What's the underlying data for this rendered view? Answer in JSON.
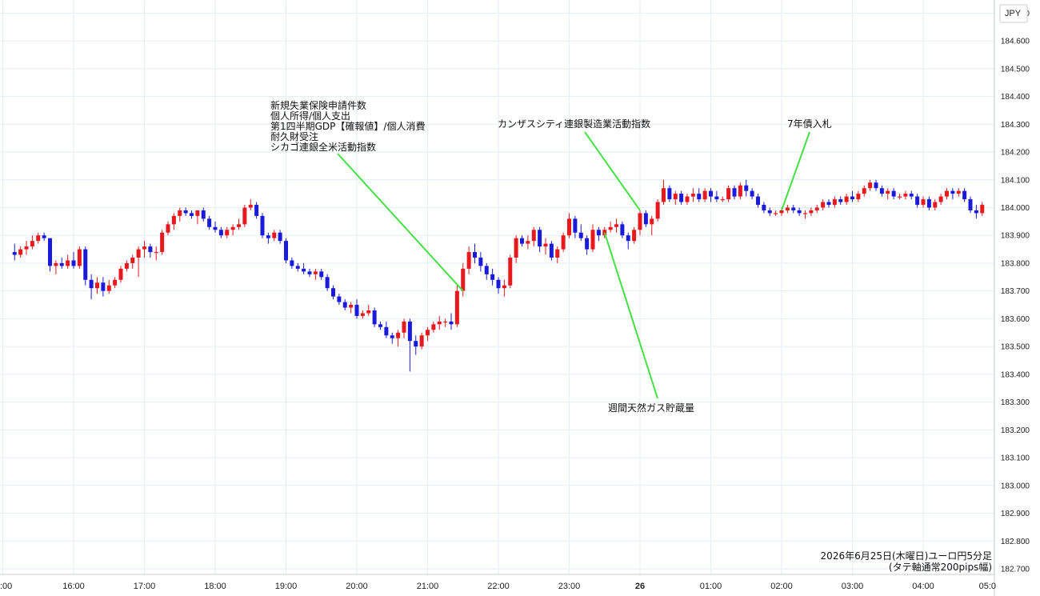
{
  "chart_data": {
    "type": "candlestick",
    "currency_label": "JPY",
    "caption_line1": "2026年6月25日(木曜日)ユーロ円5分足",
    "caption_line2": "(タテ軸通常200pips幅)",
    "ylim": [
      182.7,
      184.75
    ],
    "y_ticks": [
      "184.700",
      "184.600",
      "184.500",
      "184.400",
      "184.300",
      "184.200",
      "184.100",
      "184.000",
      "183.900",
      "183.800",
      "183.700",
      "183.600",
      "183.500",
      "183.400",
      "183.300",
      "183.200",
      "183.100",
      "183.000",
      "182.900",
      "182.800",
      "182.700"
    ],
    "x_ticks": [
      ":00",
      "16:00",
      "17:00",
      "18:00",
      "19:00",
      "20:00",
      "21:00",
      "22:00",
      "23:00",
      "26",
      "01:00",
      "02:00",
      "03:00",
      "04:00",
      "05:0"
    ],
    "x_start": "15:10",
    "interval_minutes": 5,
    "up_color": "#e8191e",
    "down_color": "#1a1adb",
    "annotation_color": "#44e044",
    "annotations": [
      {
        "lines": [
          "新規失業保険申請件数",
          "個人所得/個人支出",
          "第1四半期GDP【確報値】/個人消費",
          "耐久財受注",
          "シカゴ連銀全米活動指数"
        ],
        "time": "21:30",
        "price": 183.7
      },
      {
        "lines": [
          "カンザスシティ連銀製造業活動指数"
        ],
        "time": "00:00",
        "price": 183.99
      },
      {
        "lines": [
          "週間天然ガス貯蔵量"
        ],
        "time": "23:30",
        "price": 183.91
      },
      {
        "lines": [
          "7年債入札"
        ],
        "time": "02:00",
        "price": 183.99
      }
    ],
    "candles": [
      [
        183.84,
        183.87,
        183.81,
        183.83
      ],
      [
        183.83,
        183.86,
        183.82,
        183.85
      ],
      [
        183.85,
        183.88,
        183.83,
        183.86
      ],
      [
        183.86,
        183.9,
        183.85,
        183.88
      ],
      [
        183.88,
        183.91,
        183.87,
        183.9
      ],
      [
        183.9,
        183.91,
        183.88,
        183.89
      ],
      [
        183.89,
        183.89,
        183.77,
        183.79
      ],
      [
        183.79,
        183.81,
        183.76,
        183.8
      ],
      [
        183.8,
        183.82,
        183.78,
        183.79
      ],
      [
        183.79,
        183.83,
        183.78,
        183.81
      ],
      [
        183.81,
        183.84,
        183.78,
        183.79
      ],
      [
        183.79,
        183.86,
        183.78,
        183.85
      ],
      [
        183.85,
        183.86,
        183.72,
        183.74
      ],
      [
        183.74,
        183.76,
        183.67,
        183.71
      ],
      [
        183.71,
        183.75,
        183.69,
        183.73
      ],
      [
        183.73,
        183.75,
        183.68,
        183.7
      ],
      [
        183.7,
        183.74,
        183.69,
        183.72
      ],
      [
        183.72,
        183.75,
        183.71,
        183.74
      ],
      [
        183.74,
        183.79,
        183.73,
        183.78
      ],
      [
        183.78,
        183.81,
        183.77,
        183.8
      ],
      [
        183.8,
        183.83,
        183.78,
        183.82
      ],
      [
        183.82,
        183.86,
        183.75,
        183.85
      ],
      [
        183.85,
        183.88,
        183.82,
        183.86
      ],
      [
        183.86,
        183.87,
        183.82,
        183.84
      ],
      [
        183.84,
        183.86,
        183.81,
        183.84
      ],
      [
        183.84,
        183.92,
        183.83,
        183.91
      ],
      [
        183.91,
        183.95,
        183.9,
        183.94
      ],
      [
        183.94,
        183.98,
        183.92,
        183.97
      ],
      [
        183.97,
        184.0,
        183.95,
        183.99
      ],
      [
        183.99,
        184.0,
        183.97,
        183.98
      ],
      [
        183.98,
        183.99,
        183.96,
        183.97
      ],
      [
        183.97,
        183.99,
        183.94,
        183.99
      ],
      [
        183.99,
        184.0,
        183.95,
        183.96
      ],
      [
        183.96,
        183.97,
        183.92,
        183.93
      ],
      [
        183.93,
        183.95,
        183.91,
        183.92
      ],
      [
        183.92,
        183.93,
        183.89,
        183.9
      ],
      [
        183.9,
        183.93,
        183.89,
        183.92
      ],
      [
        183.92,
        183.94,
        183.9,
        183.93
      ],
      [
        183.93,
        183.96,
        183.92,
        183.94
      ],
      [
        183.94,
        184.01,
        183.93,
        184.0
      ],
      [
        184.0,
        184.03,
        183.99,
        184.01
      ],
      [
        184.01,
        184.02,
        183.96,
        183.97
      ],
      [
        183.97,
        183.98,
        183.89,
        183.9
      ],
      [
        183.9,
        183.91,
        183.87,
        183.89
      ],
      [
        183.89,
        183.92,
        183.88,
        183.91
      ],
      [
        183.91,
        183.92,
        183.87,
        183.88
      ],
      [
        183.88,
        183.89,
        183.8,
        183.81
      ],
      [
        183.81,
        183.82,
        183.78,
        183.79
      ],
      [
        183.79,
        183.8,
        183.77,
        183.78
      ],
      [
        183.78,
        183.8,
        183.76,
        183.77
      ],
      [
        183.77,
        183.78,
        183.75,
        183.76
      ],
      [
        183.76,
        183.78,
        183.74,
        183.77
      ],
      [
        183.77,
        183.78,
        183.74,
        183.75
      ],
      [
        183.75,
        183.76,
        183.7,
        183.71
      ],
      [
        183.71,
        183.72,
        183.67,
        183.68
      ],
      [
        183.68,
        183.69,
        183.65,
        183.66
      ],
      [
        183.66,
        183.67,
        183.63,
        183.64
      ],
      [
        183.64,
        183.66,
        183.62,
        183.65
      ],
      [
        183.65,
        183.67,
        183.6,
        183.61
      ],
      [
        183.61,
        183.63,
        183.6,
        183.62
      ],
      [
        183.62,
        183.65,
        183.61,
        183.63
      ],
      [
        183.63,
        183.64,
        183.57,
        183.58
      ],
      [
        183.58,
        183.59,
        183.56,
        183.57
      ],
      [
        183.57,
        183.59,
        183.53,
        183.54
      ],
      [
        183.54,
        183.55,
        183.51,
        183.53
      ],
      [
        183.53,
        183.56,
        183.5,
        183.55
      ],
      [
        183.55,
        183.6,
        183.53,
        183.59
      ],
      [
        183.59,
        183.6,
        183.41,
        183.52
      ],
      [
        183.52,
        183.54,
        183.47,
        183.5
      ],
      [
        183.5,
        183.55,
        183.49,
        183.54
      ],
      [
        183.54,
        183.57,
        183.52,
        183.56
      ],
      [
        183.56,
        183.59,
        183.55,
        183.58
      ],
      [
        183.58,
        183.61,
        183.56,
        183.59
      ],
      [
        183.59,
        183.6,
        183.57,
        183.59
      ],
      [
        183.59,
        183.62,
        183.56,
        183.58
      ],
      [
        183.58,
        183.72,
        183.57,
        183.7
      ],
      [
        183.7,
        183.8,
        183.68,
        183.78
      ],
      [
        183.78,
        183.86,
        183.76,
        183.84
      ],
      [
        183.84,
        183.87,
        183.8,
        183.82
      ],
      [
        183.82,
        183.84,
        183.77,
        183.79
      ],
      [
        183.79,
        183.8,
        183.74,
        183.76
      ],
      [
        183.76,
        183.78,
        183.72,
        183.74
      ],
      [
        183.74,
        183.75,
        183.69,
        183.71
      ],
      [
        183.71,
        183.74,
        183.68,
        183.72
      ],
      [
        183.72,
        183.83,
        183.71,
        183.82
      ],
      [
        183.82,
        183.9,
        183.8,
        183.89
      ],
      [
        183.89,
        183.9,
        183.86,
        183.87
      ],
      [
        183.87,
        183.9,
        183.85,
        183.88
      ],
      [
        183.88,
        183.93,
        183.86,
        183.92
      ],
      [
        183.92,
        183.93,
        183.84,
        183.86
      ],
      [
        183.86,
        183.89,
        183.83,
        183.87
      ],
      [
        183.87,
        183.88,
        183.81,
        183.82
      ],
      [
        183.82,
        183.86,
        183.8,
        183.85
      ],
      [
        183.85,
        183.91,
        183.84,
        183.9
      ],
      [
        183.9,
        183.98,
        183.89,
        183.96
      ],
      [
        183.96,
        183.97,
        183.89,
        183.91
      ],
      [
        183.91,
        183.94,
        183.88,
        183.89
      ],
      [
        183.89,
        183.9,
        183.83,
        183.85
      ],
      [
        183.85,
        183.94,
        183.84,
        183.92
      ],
      [
        183.92,
        183.93,
        183.88,
        183.9
      ],
      [
        183.9,
        183.93,
        183.89,
        183.92
      ],
      [
        183.92,
        183.95,
        183.91,
        183.93
      ],
      [
        183.93,
        183.96,
        183.91,
        183.94
      ],
      [
        183.94,
        183.95,
        183.89,
        183.9
      ],
      [
        183.9,
        183.91,
        183.85,
        183.88
      ],
      [
        183.88,
        183.93,
        183.87,
        183.92
      ],
      [
        183.92,
        183.99,
        183.9,
        183.98
      ],
      [
        183.98,
        183.99,
        183.93,
        183.94
      ],
      [
        183.94,
        183.97,
        183.9,
        183.96
      ],
      [
        183.96,
        184.03,
        183.95,
        184.02
      ],
      [
        184.02,
        184.1,
        184.01,
        184.07
      ],
      [
        184.07,
        184.08,
        184.02,
        184.03
      ],
      [
        184.03,
        184.06,
        184.01,
        184.05
      ],
      [
        184.05,
        184.06,
        184.01,
        184.02
      ],
      [
        184.02,
        184.05,
        184.01,
        184.04
      ],
      [
        184.04,
        184.07,
        184.02,
        184.05
      ],
      [
        184.05,
        184.07,
        184.02,
        184.03
      ],
      [
        184.03,
        184.07,
        184.02,
        184.06
      ],
      [
        184.06,
        184.07,
        184.02,
        184.04
      ],
      [
        184.04,
        184.06,
        184.02,
        184.03
      ],
      [
        184.03,
        184.04,
        184.02,
        184.03
      ],
      [
        184.03,
        184.08,
        184.02,
        184.07
      ],
      [
        184.07,
        184.08,
        184.03,
        184.04
      ],
      [
        184.04,
        184.09,
        184.03,
        184.08
      ],
      [
        184.08,
        184.1,
        184.04,
        184.06
      ],
      [
        184.06,
        184.07,
        184.03,
        184.04
      ],
      [
        184.04,
        184.05,
        184.0,
        184.01
      ],
      [
        184.01,
        184.02,
        183.98,
        183.99
      ],
      [
        183.99,
        184.0,
        183.97,
        183.98
      ],
      [
        183.98,
        183.99,
        183.97,
        183.98
      ],
      [
        183.98,
        184.0,
        183.97,
        183.99
      ],
      [
        183.99,
        184.01,
        183.98,
        184.0
      ],
      [
        184.0,
        184.01,
        183.98,
        183.99
      ],
      [
        183.99,
        184.0,
        183.97,
        183.98
      ],
      [
        183.98,
        183.99,
        183.96,
        183.98
      ],
      [
        183.98,
        184.0,
        183.97,
        183.99
      ],
      [
        183.99,
        184.01,
        183.98,
        184.0
      ],
      [
        184.0,
        184.03,
        183.99,
        184.02
      ],
      [
        184.02,
        184.03,
        184.0,
        184.01
      ],
      [
        184.01,
        184.04,
        184.0,
        184.03
      ],
      [
        184.03,
        184.04,
        184.01,
        184.02
      ],
      [
        184.02,
        184.05,
        184.01,
        184.04
      ],
      [
        184.04,
        184.06,
        184.02,
        184.03
      ],
      [
        184.03,
        184.06,
        184.02,
        184.05
      ],
      [
        184.05,
        184.08,
        184.04,
        184.07
      ],
      [
        184.07,
        184.1,
        184.06,
        184.09
      ],
      [
        184.09,
        184.1,
        184.06,
        184.07
      ],
      [
        184.07,
        184.08,
        184.04,
        184.05
      ],
      [
        184.05,
        184.07,
        184.03,
        184.06
      ],
      [
        184.06,
        184.07,
        184.03,
        184.04
      ],
      [
        184.04,
        184.05,
        184.03,
        184.04
      ],
      [
        184.04,
        184.06,
        184.03,
        184.05
      ],
      [
        184.05,
        184.06,
        184.03,
        184.04
      ],
      [
        184.04,
        184.05,
        184.0,
        184.01
      ],
      [
        184.01,
        184.04,
        184.0,
        184.03
      ],
      [
        184.03,
        184.04,
        183.99,
        184.0
      ],
      [
        184.0,
        184.03,
        183.99,
        184.02
      ],
      [
        184.02,
        184.05,
        184.01,
        184.04
      ],
      [
        184.04,
        184.07,
        184.03,
        184.06
      ],
      [
        184.06,
        184.07,
        184.03,
        184.05
      ],
      [
        184.05,
        184.07,
        184.04,
        184.06
      ],
      [
        184.06,
        184.07,
        184.02,
        184.03
      ],
      [
        184.03,
        184.04,
        183.98,
        183.99
      ],
      [
        183.99,
        184.01,
        183.96,
        183.98
      ],
      [
        183.98,
        184.02,
        183.97,
        184.01
      ]
    ]
  }
}
